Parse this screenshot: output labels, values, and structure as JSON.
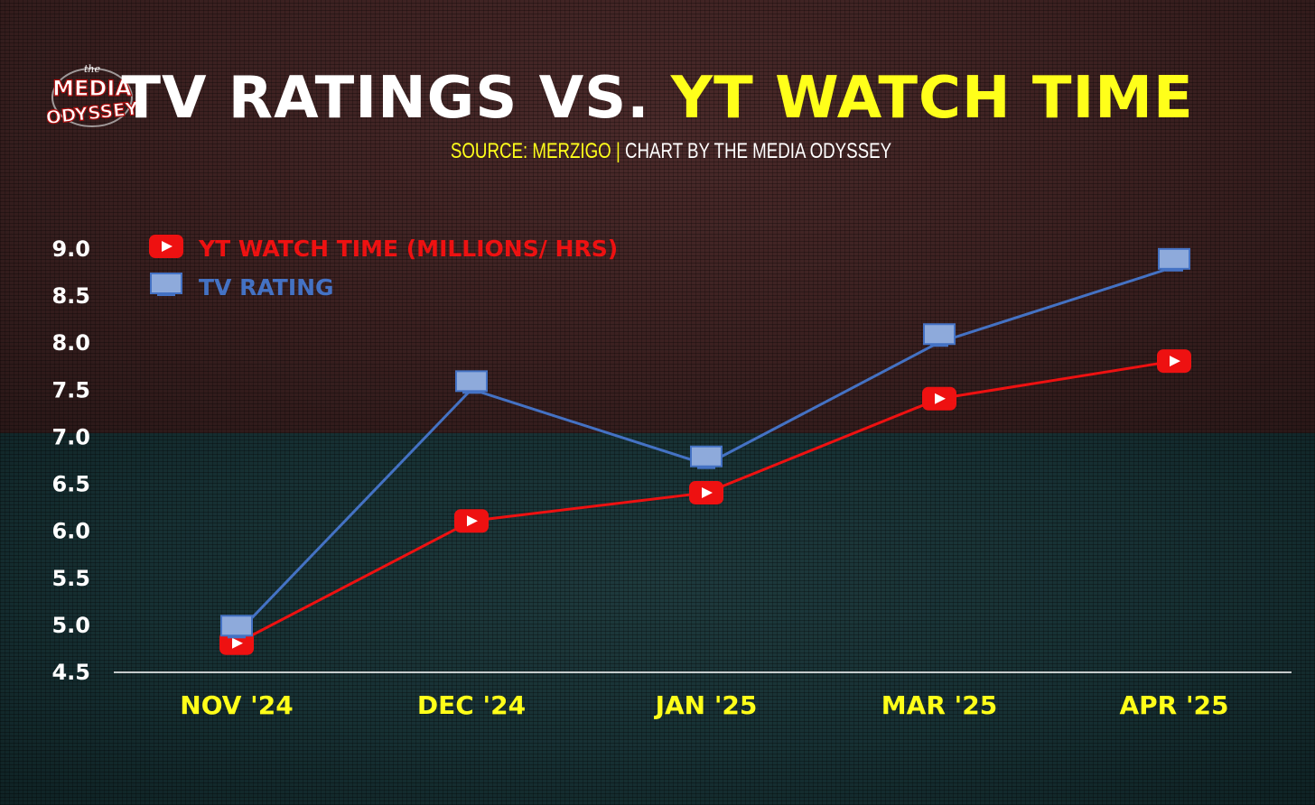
{
  "header": {
    "title_main": "TV RATINGS VS.",
    "title_highlight": "YT WATCH TIME",
    "subtitle_source": "SOURCE: MERZIGO",
    "subtitle_sep": " | ",
    "subtitle_credit": "CHART BY THE MEDIA ODYSSEY"
  },
  "logo": {
    "line1": "the",
    "line2": "MEDIA",
    "line3": "ODYSSEY"
  },
  "colors": {
    "yt": "#ee1111",
    "tv": "#4472c4",
    "tv_marker_fill": "#8eaadb",
    "title_highlight": "#ffff1a",
    "axis_tick_x": "#ffff1a",
    "axis_tick_y": "#ffffff"
  },
  "chart_data": {
    "type": "line",
    "categories": [
      "NOV '24",
      "DEC '24",
      "JAN '25",
      "MAR '25",
      "APR '25"
    ],
    "series": [
      {
        "name": "YT WATCH TIME (MILLIONS/ HRS)",
        "marker": "youtube-play-icon",
        "values": [
          4.8,
          6.1,
          6.4,
          7.4,
          7.8
        ]
      },
      {
        "name": "TV RATING",
        "marker": "tv-monitor-icon",
        "values": [
          4.9,
          7.5,
          6.7,
          8.0,
          8.8
        ]
      }
    ],
    "ylim": [
      4.5,
      9.0
    ],
    "yticks": [
      "4.5",
      "5.0",
      "5.5",
      "6.0",
      "6.5",
      "7.0",
      "7.5",
      "8.0",
      "8.5",
      "9.0"
    ],
    "grid": false,
    "legend_position": "top-left"
  }
}
